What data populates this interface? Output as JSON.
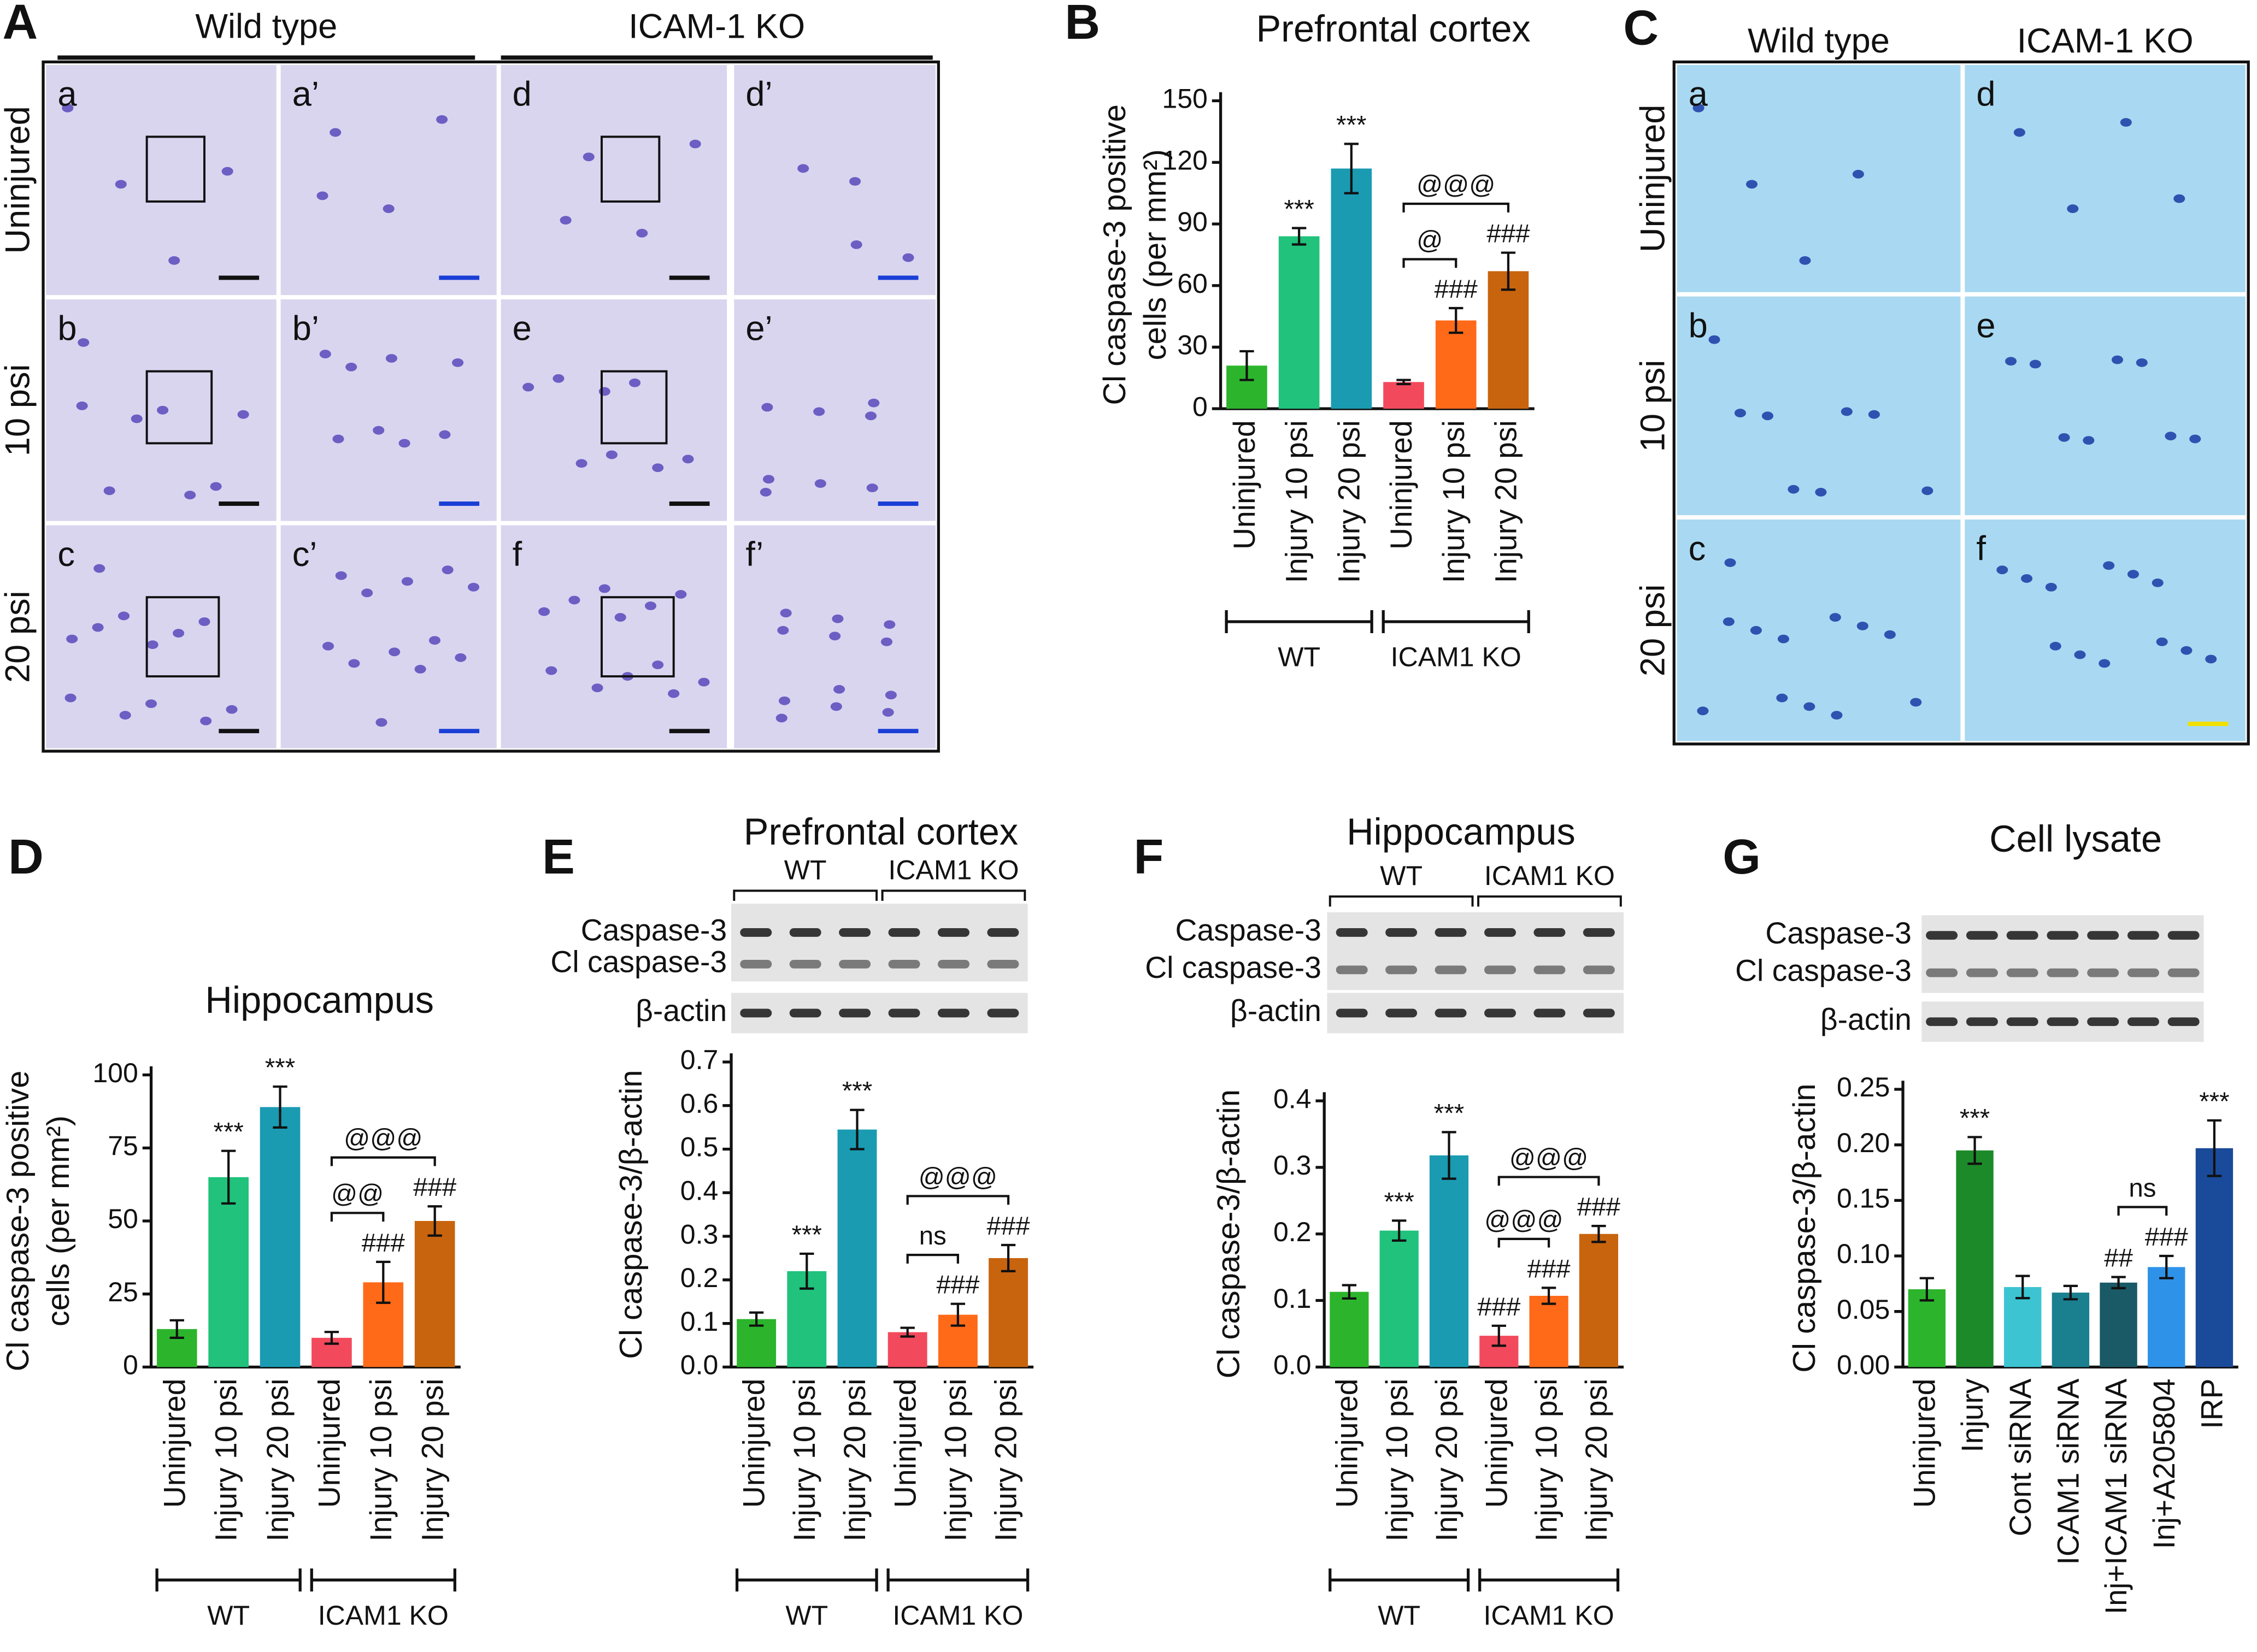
{
  "panel_labels": [
    "A",
    "B",
    "C",
    "D",
    "E",
    "F",
    "G"
  ],
  "image_panels": [
    {
      "columns": [
        "Wild type",
        "ICAM-1 KO"
      ],
      "rows": [
        "Uninjured",
        "10 psi",
        "20 psi"
      ],
      "tiles": [
        [
          "a",
          "a’",
          "d",
          "d’"
        ],
        [
          "b",
          "b’",
          "e",
          "e’"
        ],
        [
          "c",
          "c’",
          "f",
          "f’"
        ]
      ]
    },
    {
      "columns": [
        "Wild type",
        "ICAM-1 KO"
      ],
      "rows": [
        "Uninjured",
        "10 psi",
        "20 psi"
      ],
      "tiles": [
        [
          "a",
          "d"
        ],
        [
          "b",
          "e"
        ],
        [
          "c",
          "f"
        ]
      ]
    }
  ],
  "chart_data": [
    {
      "type": "bar",
      "title": "Prefrontal cortex",
      "ylabel": [
        "Cl caspase-3 positive",
        "cells (per mm²)"
      ],
      "categories": [
        "Uninjured",
        "Injury 10 psi",
        "Injury 20 psi",
        "Uninjured",
        "Injury 10 psi",
        "Injury 20 psi"
      ],
      "values": [
        21,
        84,
        117,
        13,
        43,
        67
      ],
      "errors": [
        7,
        4,
        12,
        1,
        6,
        9
      ],
      "colors": [
        "#2cb52c",
        "#20c27c",
        "#1a9bb2",
        "#f24a5c",
        "#ff6a18",
        "#c8640e"
      ],
      "annotations": [
        null,
        "***",
        "***",
        null,
        "###",
        "###"
      ],
      "brackets": [
        {
          "label": "@@@",
          "from": 3,
          "to": 5
        },
        {
          "label": "@",
          "from": 3,
          "to": 4
        }
      ],
      "groups": [
        {
          "name": "WT",
          "count": 3
        },
        {
          "name": "ICAM1 KO",
          "count": 3
        }
      ],
      "ylim": [
        0,
        150
      ],
      "yticks": [
        0,
        30,
        60,
        90,
        120,
        150
      ]
    },
    {
      "type": "bar",
      "title": "Hippocampus",
      "ylabel": [
        "Cl caspase-3 positive",
        "cells (per mm²)"
      ],
      "categories": [
        "Uninjured",
        "Injury 10 psi",
        "Injury 20 psi",
        "Uninjured",
        "Injury 10 psi",
        "Injury 20 psi"
      ],
      "values": [
        13,
        65,
        89,
        10,
        29,
        50
      ],
      "errors": [
        3,
        9,
        7,
        2,
        7,
        5
      ],
      "colors": [
        "#2cb52c",
        "#20c27c",
        "#1a9bb2",
        "#f24a5c",
        "#ff6a18",
        "#c8640e"
      ],
      "annotations": [
        null,
        "***",
        "***",
        null,
        "###",
        "###"
      ],
      "brackets": [
        {
          "label": "@@@",
          "from": 3,
          "to": 5
        },
        {
          "label": "@@",
          "from": 3,
          "to": 4
        }
      ],
      "groups": [
        {
          "name": "WT",
          "count": 3
        },
        {
          "name": "ICAM1 KO",
          "count": 3
        }
      ],
      "ylim": [
        0,
        100
      ],
      "yticks": [
        0,
        25,
        50,
        75,
        100
      ]
    },
    {
      "type": "bar",
      "title": "Prefrontal cortex",
      "ylabel": [
        "Cl caspase-3/β-actin"
      ],
      "blot": {
        "groups": [
          "WT",
          "ICAM1 KO"
        ],
        "bands": [
          "Caspase-3",
          "Cl caspase-3",
          "β-actin"
        ]
      },
      "categories": [
        "Uninjured",
        "Injury 10 psi",
        "Injury 20 psi",
        "Uninjured",
        "Injury 10 psi",
        "Injury 20 psi"
      ],
      "values": [
        0.11,
        0.22,
        0.545,
        0.08,
        0.12,
        0.25
      ],
      "errors": [
        0.015,
        0.04,
        0.045,
        0.01,
        0.025,
        0.03
      ],
      "colors": [
        "#2cb52c",
        "#20c27c",
        "#1a9bb2",
        "#f24a5c",
        "#ff6a18",
        "#c8640e"
      ],
      "annotations": [
        null,
        "***",
        "***",
        null,
        "###",
        "###"
      ],
      "brackets": [
        {
          "label": "@@@",
          "from": 3,
          "to": 5
        },
        {
          "label": "ns",
          "from": 3,
          "to": 4
        }
      ],
      "groups": [
        {
          "name": "WT",
          "count": 3
        },
        {
          "name": "ICAM1 KO",
          "count": 3
        }
      ],
      "ylim": [
        0,
        0.7
      ],
      "yticks": [
        {
          "value": 0,
          "label": "0.0"
        },
        0.1,
        0.2,
        0.3,
        0.4,
        0.5,
        0.6,
        0.7
      ]
    },
    {
      "type": "bar",
      "title": "Hippocampus",
      "ylabel": [
        "Cl caspase-3/β-actin"
      ],
      "blot": {
        "groups": [
          "WT",
          "ICAM1 KO"
        ],
        "bands": [
          "Caspase-3",
          "Cl caspase-3",
          "β-actin"
        ]
      },
      "categories": [
        "Uninjured",
        "Injury 10 psi",
        "Injury 20 psi",
        "Uninjured",
        "Injury 10 psi",
        "Injury 20 psi"
      ],
      "values": [
        0.113,
        0.205,
        0.318,
        0.047,
        0.107,
        0.2
      ],
      "errors": [
        0.01,
        0.015,
        0.035,
        0.015,
        0.012,
        0.012
      ],
      "colors": [
        "#2cb52c",
        "#20c27c",
        "#1a9bb2",
        "#f24a5c",
        "#ff6a18",
        "#c8640e"
      ],
      "annotations": [
        null,
        "***",
        "***",
        "###",
        "###",
        "###"
      ],
      "brackets": [
        {
          "label": "@@@",
          "from": 3,
          "to": 5
        },
        {
          "label": "@@@",
          "from": 3,
          "to": 4
        }
      ],
      "groups": [
        {
          "name": "WT",
          "count": 3
        },
        {
          "name": "ICAM1 KO",
          "count": 3
        }
      ],
      "ylim": [
        0,
        0.4
      ],
      "yticks": [
        {
          "value": 0,
          "label": "0.0"
        },
        0.1,
        0.2,
        0.3,
        0.4
      ]
    },
    {
      "type": "bar",
      "title": "Cell lysate",
      "ylabel": [
        "Cl caspase-3/β-actin"
      ],
      "blot": {
        "groups": [],
        "bands": [
          "Caspase-3",
          "Cl caspase-3",
          "β-actin"
        ]
      },
      "categories": [
        "Uninjured",
        "Injury",
        "Cont siRNA",
        "ICAM1 siRNA",
        "Inj+ICAM1 siRNA",
        "Inj+A205804",
        "IRP"
      ],
      "values": [
        0.07,
        0.195,
        0.072,
        0.067,
        0.076,
        0.09,
        0.197
      ],
      "errors": [
        0.01,
        0.012,
        0.01,
        0.006,
        0.005,
        0.01,
        0.025
      ],
      "colors": [
        "#2cb52c",
        "#1d8a2a",
        "#3cc4d2",
        "#1a7f8f",
        "#1a5a66",
        "#2e93e8",
        "#1a4a9a"
      ],
      "annotations": [
        null,
        "***",
        null,
        null,
        "##",
        "###",
        "***"
      ],
      "brackets": [
        {
          "label": "ns",
          "from": 4,
          "to": 5
        }
      ],
      "groups": [],
      "ylim": [
        0,
        0.25
      ],
      "yticks": [
        {
          "value": 0,
          "label": "0.00"
        },
        0.05,
        {
          "value": 0.1,
          "label": "0.10"
        },
        0.15,
        {
          "value": 0.2,
          "label": "0.20"
        },
        0.25
      ]
    }
  ]
}
